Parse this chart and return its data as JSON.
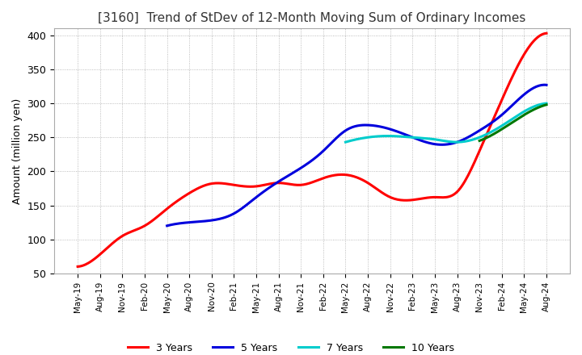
{
  "title": "[3160]  Trend of StDev of 12-Month Moving Sum of Ordinary Incomes",
  "ylabel": "Amount (million yen)",
  "ylim": [
    50,
    410
  ],
  "yticks": [
    50,
    100,
    150,
    200,
    250,
    300,
    350,
    400
  ],
  "background_color": "#ffffff",
  "grid_color": "#aaaaaa",
  "title_fontsize": 11,
  "legend_entries": [
    "3 Years",
    "5 Years",
    "7 Years",
    "10 Years"
  ],
  "line_colors": [
    "#ff0000",
    "#0000dd",
    "#00cccc",
    "#007700"
  ],
  "x_labels": [
    "May-19",
    "Aug-19",
    "Nov-19",
    "Feb-20",
    "May-20",
    "Aug-20",
    "Nov-20",
    "Feb-21",
    "May-21",
    "Aug-21",
    "Nov-21",
    "Feb-22",
    "May-22",
    "Aug-22",
    "Nov-22",
    "Feb-23",
    "May-23",
    "Aug-23",
    "Nov-23",
    "Feb-24",
    "May-24",
    "Aug-24"
  ],
  "series_3y": [
    60,
    78,
    105,
    120,
    145,
    168,
    182,
    180,
    178,
    183,
    180,
    190,
    195,
    183,
    162,
    158,
    162,
    170,
    230,
    305,
    372,
    403
  ],
  "series_5y": [
    null,
    null,
    null,
    null,
    120,
    125,
    128,
    138,
    162,
    185,
    205,
    230,
    260,
    268,
    262,
    250,
    240,
    243,
    260,
    283,
    313,
    327
  ],
  "series_7y": [
    null,
    null,
    null,
    null,
    null,
    null,
    null,
    null,
    null,
    null,
    null,
    null,
    243,
    250,
    252,
    250,
    247,
    243,
    250,
    267,
    288,
    300
  ],
  "series_10y": [
    null,
    null,
    null,
    null,
    null,
    null,
    null,
    null,
    null,
    null,
    null,
    null,
    null,
    null,
    null,
    null,
    null,
    null,
    245,
    262,
    283,
    298
  ]
}
